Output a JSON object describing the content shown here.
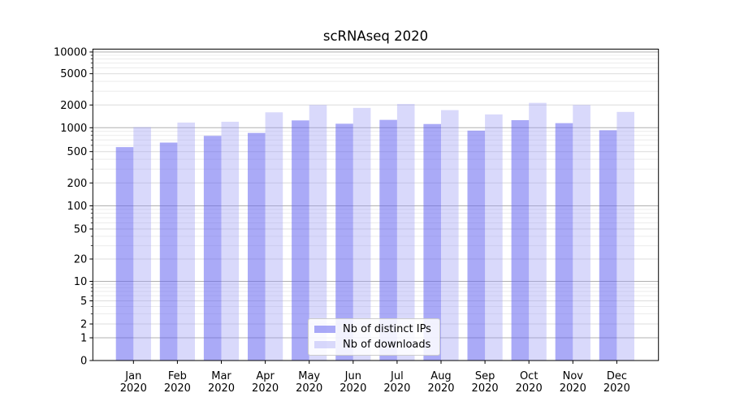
{
  "figure": {
    "background": "#ffffff"
  },
  "chart_data": {
    "type": "bar",
    "title": "scRNAseq 2020",
    "xlabel": "",
    "ylabel": "",
    "yscale": "symlog",
    "grid": true,
    "legend_position": "lower center",
    "ylim": [
      0,
      10500
    ],
    "yticks": [
      0,
      1,
      2,
      5,
      10,
      20,
      50,
      100,
      200,
      500,
      1000,
      2000,
      5000,
      10000
    ],
    "categories": [
      {
        "month": "Jan",
        "year": "2020"
      },
      {
        "month": "Feb",
        "year": "2020"
      },
      {
        "month": "Mar",
        "year": "2020"
      },
      {
        "month": "Apr",
        "year": "2020"
      },
      {
        "month": "May",
        "year": "2020"
      },
      {
        "month": "Jun",
        "year": "2020"
      },
      {
        "month": "Jul",
        "year": "2020"
      },
      {
        "month": "Aug",
        "year": "2020"
      },
      {
        "month": "Sep",
        "year": "2020"
      },
      {
        "month": "Oct",
        "year": "2020"
      },
      {
        "month": "Nov",
        "year": "2020"
      },
      {
        "month": "Dec",
        "year": "2020"
      }
    ],
    "series": [
      {
        "name": "Nb of distinct IPs",
        "color": "rgba(100,100,240,0.55)",
        "values": [
          570,
          650,
          790,
          860,
          1250,
          1130,
          1270,
          1120,
          920,
          1260,
          1150,
          930
        ]
      },
      {
        "name": "Nb of downloads",
        "color": "rgba(160,160,245,0.4)",
        "values": [
          1020,
          1170,
          1200,
          1600,
          2000,
          1830,
          2060,
          1710,
          1500,
          2130,
          2000,
          1620
        ]
      }
    ],
    "colors": {
      "grid_major": "#b0b0b0",
      "grid_mid": "#dcdcdc",
      "grid_minor": "#ececec",
      "axis": "#000000"
    }
  }
}
